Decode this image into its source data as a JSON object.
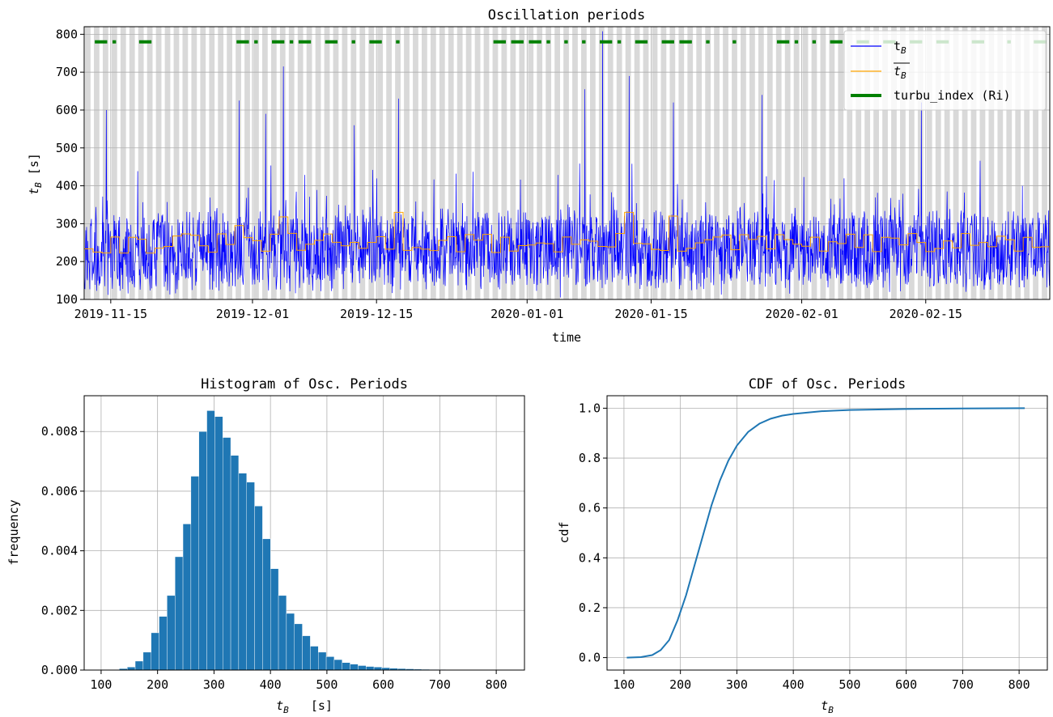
{
  "chart_data": [
    {
      "type": "line",
      "title": "Oscillation periods",
      "xlabel": "time",
      "ylabel": "t_B [s]",
      "ylabel_parts": {
        "base": "t",
        "sub": "B",
        "rest": " [s]"
      },
      "x_range": [
        "2019-11-12",
        "2020-02-29"
      ],
      "ylim": [
        100,
        820
      ],
      "y_ticks": [
        100,
        200,
        300,
        400,
        500,
        600,
        700,
        800
      ],
      "x_ticks": [
        "2019-11-15",
        "2019-12-01",
        "2019-12-15",
        "2020-01-01",
        "2020-01-15",
        "2020-02-01",
        "2020-02-15"
      ],
      "grid": true,
      "legend_position": "top-right",
      "background_bands": "alternating gray day shading",
      "legend": [
        {
          "label_base": "t",
          "label_sub": "B",
          "overline": false,
          "color": "#0000ff",
          "style": "thin line"
        },
        {
          "label_base": "t",
          "label_sub": "B",
          "overline": true,
          "color": "#ffa500",
          "style": "thin line"
        },
        {
          "label": "turbu_index (Ri)",
          "color": "#008000",
          "style": "thick line"
        }
      ],
      "series": [
        {
          "kind": "raw",
          "color": "#0000ff",
          "typical_range": [
            160,
            330
          ],
          "peaks": [
            {
              "x": "2019-11-14",
              "y": 675
            },
            {
              "x": "2019-11-14",
              "y": 600
            },
            {
              "x": "2019-11-29",
              "y": 625
            },
            {
              "x": "2019-12-04",
              "y": 715
            },
            {
              "x": "2019-12-02",
              "y": 590
            },
            {
              "x": "2019-12-12",
              "y": 560
            },
            {
              "x": "2019-12-17",
              "y": 630
            },
            {
              "x": "2020-01-07",
              "y": 655
            },
            {
              "x": "2020-01-09",
              "y": 808
            },
            {
              "x": "2020-01-12",
              "y": 690
            },
            {
              "x": "2020-01-17",
              "y": 620
            },
            {
              "x": "2020-01-27",
              "y": 640
            },
            {
              "x": "2020-02-14",
              "y": 620
            }
          ]
        },
        {
          "kind": "daily_mean",
          "color": "#ffa500",
          "typical_range": [
            215,
            300
          ],
          "notable_steps": [
            {
              "x": "2019-11-29",
              "y": 295
            },
            {
              "x": "2019-12-04",
              "y": 318
            },
            {
              "x": "2019-12-17",
              "y": 330
            },
            {
              "x": "2020-01-12",
              "y": 330
            },
            {
              "x": "2020-01-17",
              "y": 320
            }
          ]
        },
        {
          "kind": "turbulence_indicator",
          "color": "#008000",
          "y": 780,
          "segments": [
            [
              "2019-11-13",
              "2019-11-14"
            ],
            [
              "2019-11-15",
              "2019-11-15"
            ],
            [
              "2019-11-18",
              "2019-11-19"
            ],
            [
              "2019-11-29",
              "2019-11-30"
            ],
            [
              "2019-12-01",
              "2019-12-01"
            ],
            [
              "2019-12-03",
              "2019-12-04"
            ],
            [
              "2019-12-05",
              "2019-12-05"
            ],
            [
              "2019-12-06",
              "2019-12-07"
            ],
            [
              "2019-12-09",
              "2019-12-10"
            ],
            [
              "2019-12-12",
              "2019-12-12"
            ],
            [
              "2019-12-14",
              "2019-12-15"
            ],
            [
              "2019-12-17",
              "2019-12-17"
            ],
            [
              "2019-12-28",
              "2019-12-29"
            ],
            [
              "2019-12-30",
              "2019-12-31"
            ],
            [
              "2020-01-01",
              "2020-01-02"
            ],
            [
              "2020-01-03",
              "2020-01-03"
            ],
            [
              "2020-01-05",
              "2020-01-05"
            ],
            [
              "2020-01-07",
              "2020-01-07"
            ],
            [
              "2020-01-09",
              "2020-01-10"
            ],
            [
              "2020-01-11",
              "2020-01-11"
            ],
            [
              "2020-01-13",
              "2020-01-14"
            ],
            [
              "2020-01-16",
              "2020-01-17"
            ],
            [
              "2020-01-18",
              "2020-01-19"
            ],
            [
              "2020-01-21",
              "2020-01-21"
            ],
            [
              "2020-01-24",
              "2020-01-24"
            ],
            [
              "2020-01-29",
              "2020-01-30"
            ],
            [
              "2020-01-31",
              "2020-01-31"
            ],
            [
              "2020-02-02",
              "2020-02-02"
            ],
            [
              "2020-02-04",
              "2020-02-05"
            ],
            [
              "2020-02-07",
              "2020-02-08"
            ],
            [
              "2020-02-10",
              "2020-02-11"
            ],
            [
              "2020-02-13",
              "2020-02-14"
            ],
            [
              "2020-02-16",
              "2020-02-17"
            ],
            [
              "2020-02-20",
              "2020-02-21"
            ],
            [
              "2020-02-24",
              "2020-02-24"
            ],
            [
              "2020-02-27",
              "2020-02-28"
            ]
          ]
        }
      ]
    },
    {
      "type": "bar",
      "title": "Histogram of Osc. Periods",
      "xlabel": "t_B [s]",
      "xlabel_parts": {
        "base": "t",
        "sub": "B",
        "rest": "   [s]"
      },
      "ylabel": "frequency",
      "xlim": [
        70,
        850
      ],
      "ylim": [
        0,
        0.0092
      ],
      "x_ticks": [
        100,
        200,
        300,
        400,
        500,
        600,
        700,
        800
      ],
      "y_ticks": [
        "0.000",
        "0.002",
        "0.004",
        "0.006",
        "0.008"
      ],
      "grid": true,
      "color": "#1f77b4",
      "bin_width": 14.1,
      "bin_start": 104,
      "values": [
        2e-06,
        1e-05,
        5e-05,
        0.0001,
        0.0003,
        0.0006,
        0.00125,
        0.0018,
        0.0025,
        0.0038,
        0.0049,
        0.0065,
        0.008,
        0.0087,
        0.0085,
        0.0078,
        0.0072,
        0.0066,
        0.0063,
        0.0055,
        0.0044,
        0.0034,
        0.0025,
        0.0019,
        0.00155,
        0.00115,
        0.0008,
        0.0006,
        0.00045,
        0.00035,
        0.00025,
        0.0002,
        0.00015,
        0.00012,
        0.0001,
        8e-05,
        6e-05,
        5e-05,
        4e-05,
        3e-05,
        2.5e-05,
        2e-05,
        1.6e-05,
        1.2e-05,
        1e-05,
        8e-06,
        6e-06,
        5e-06,
        4e-06,
        3e-06
      ]
    },
    {
      "type": "line",
      "title": "CDF of Osc. Periods",
      "xlabel": "t_B",
      "xlabel_parts": {
        "base": "t",
        "sub": "B",
        "rest": ""
      },
      "ylabel": "cdf",
      "xlim": [
        70,
        850
      ],
      "ylim": [
        -0.05,
        1.05
      ],
      "x_ticks": [
        100,
        200,
        300,
        400,
        500,
        600,
        700,
        800
      ],
      "y_ticks": [
        "0.0",
        "0.2",
        "0.4",
        "0.6",
        "0.8",
        "1.0"
      ],
      "grid": true,
      "color": "#1f77b4",
      "x": [
        105,
        130,
        150,
        165,
        180,
        195,
        210,
        225,
        240,
        255,
        270,
        285,
        300,
        320,
        340,
        360,
        380,
        400,
        450,
        500,
        600,
        700,
        810
      ],
      "y": [
        0.0,
        0.002,
        0.01,
        0.03,
        0.07,
        0.15,
        0.25,
        0.37,
        0.49,
        0.61,
        0.71,
        0.79,
        0.85,
        0.905,
        0.938,
        0.958,
        0.97,
        0.977,
        0.988,
        0.993,
        0.997,
        0.999,
        1.0
      ]
    }
  ]
}
